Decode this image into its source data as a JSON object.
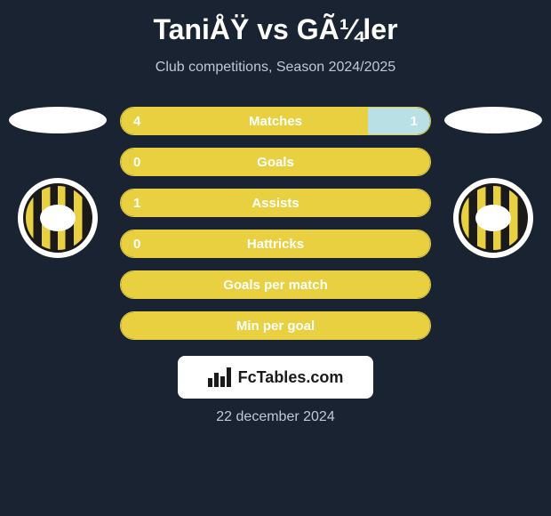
{
  "header": {
    "title": "TaniÅŸ vs GÃ¼ler",
    "subtitle": "Club competitions, Season 2024/2025"
  },
  "colors": {
    "background": "#1a2332",
    "primary": "#e8d040",
    "secondary": "#b8e0e5",
    "text": "#ffffff",
    "subtitle_text": "#c0c8d8"
  },
  "stats": [
    {
      "label": "Matches",
      "left_value": "4",
      "right_value": "1",
      "left_pct": 80,
      "right_pct": 20,
      "show_left": true,
      "show_right": true
    },
    {
      "label": "Goals",
      "left_value": "0",
      "right_value": "",
      "left_pct": 100,
      "right_pct": 0,
      "show_left": true,
      "show_right": false
    },
    {
      "label": "Assists",
      "left_value": "1",
      "right_value": "",
      "left_pct": 100,
      "right_pct": 0,
      "show_left": true,
      "show_right": false
    },
    {
      "label": "Hattricks",
      "left_value": "0",
      "right_value": "",
      "left_pct": 100,
      "right_pct": 0,
      "show_left": true,
      "show_right": false
    },
    {
      "label": "Goals per match",
      "left_value": "",
      "right_value": "",
      "left_pct": 100,
      "right_pct": 0,
      "show_left": false,
      "show_right": false
    },
    {
      "label": "Min per goal",
      "left_value": "",
      "right_value": "",
      "left_pct": 100,
      "right_pct": 0,
      "show_left": false,
      "show_right": false
    }
  ],
  "footer": {
    "logo_text": "FcTables.com",
    "date": "22 december 2024"
  }
}
